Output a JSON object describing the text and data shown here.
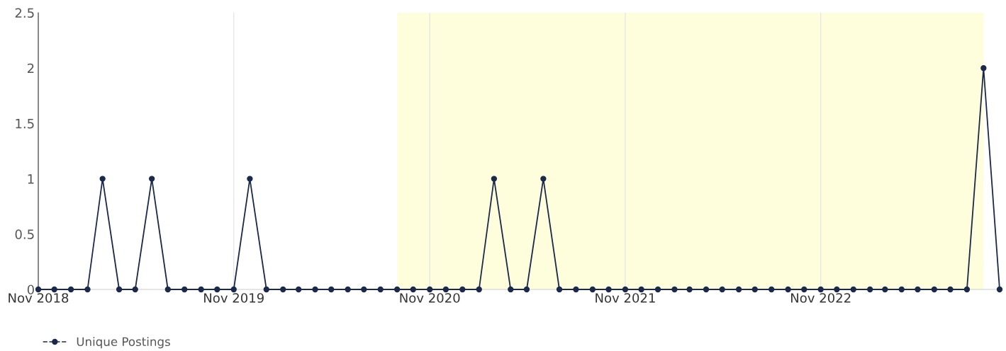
{
  "chart_data": {
    "type": "line",
    "x": [
      "2018-11",
      "2018-12",
      "2019-01",
      "2019-02",
      "2019-03",
      "2019-04",
      "2019-05",
      "2019-06",
      "2019-07",
      "2019-08",
      "2019-09",
      "2019-10",
      "2019-11",
      "2019-12",
      "2020-01",
      "2020-02",
      "2020-03",
      "2020-04",
      "2020-05",
      "2020-06",
      "2020-07",
      "2020-08",
      "2020-09",
      "2020-10",
      "2020-11",
      "2020-12",
      "2021-01",
      "2021-02",
      "2021-03",
      "2021-04",
      "2021-05",
      "2021-06",
      "2021-07",
      "2021-08",
      "2021-09",
      "2021-10",
      "2021-11",
      "2021-12",
      "2022-01",
      "2022-02",
      "2022-03",
      "2022-04",
      "2022-05",
      "2022-06",
      "2022-07",
      "2022-08",
      "2022-09",
      "2022-10",
      "2022-11",
      "2022-12",
      "2023-01",
      "2023-02",
      "2023-03",
      "2023-04",
      "2023-05",
      "2023-06",
      "2023-07",
      "2023-08",
      "2023-09",
      "2023-10"
    ],
    "series": [
      {
        "name": "Unique Postings",
        "color": "#1b2a4a",
        "values": [
          0,
          0,
          0,
          0,
          1,
          0,
          0,
          1,
          0,
          0,
          0,
          0,
          0,
          1,
          0,
          0,
          0,
          0,
          0,
          0,
          0,
          0,
          0,
          0,
          0,
          0,
          0,
          0,
          1,
          0,
          0,
          1,
          0,
          0,
          0,
          0,
          0,
          0,
          0,
          0,
          0,
          0,
          0,
          0,
          0,
          0,
          0,
          0,
          0,
          0,
          0,
          0,
          0,
          0,
          0,
          0,
          0,
          0,
          2,
          0
        ]
      }
    ],
    "xlim": [
      "2018-11",
      "2023-10"
    ],
    "xticks": [
      {
        "value": "2018-11",
        "label": "Nov 2018"
      },
      {
        "value": "2019-11",
        "label": "Nov 2019"
      },
      {
        "value": "2020-11",
        "label": "Nov 2020"
      },
      {
        "value": "2021-11",
        "label": "Nov 2021"
      },
      {
        "value": "2022-11",
        "label": "Nov 2022"
      }
    ],
    "ylim": [
      0,
      2.5
    ],
    "yticks": [
      0,
      0.5,
      1,
      1.5,
      2,
      2.5
    ],
    "bands": [
      {
        "axis": "x",
        "from": "2020-09",
        "to": "2023-09",
        "color": "#fefedc"
      }
    ],
    "grid": "x",
    "legend": "bottom left",
    "marker": "circle",
    "line_style": "solid"
  }
}
